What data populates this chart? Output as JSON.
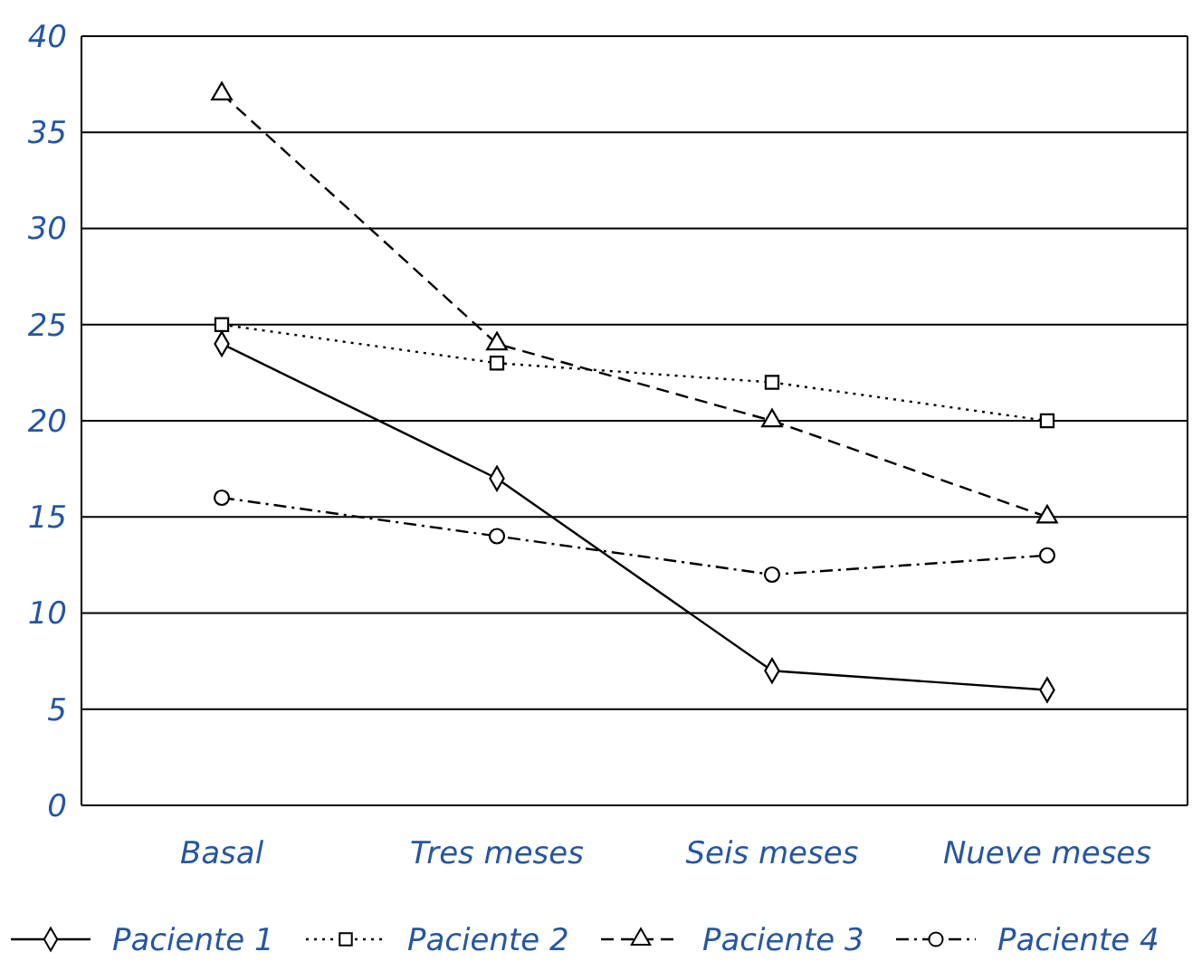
{
  "chart_data": {
    "type": "line",
    "categories": [
      "Basal",
      "Tres meses",
      "Seis meses",
      "Nueve meses"
    ],
    "series": [
      {
        "name": "Paciente 1",
        "color": "#000000",
        "marker": "diamond",
        "line_style": "solid",
        "values": [
          24,
          17,
          7,
          6
        ]
      },
      {
        "name": "Paciente 2",
        "color": "#000000",
        "marker": "square",
        "line_style": "dotted",
        "values": [
          25,
          23,
          22,
          20
        ]
      },
      {
        "name": "Paciente 3",
        "color": "#000000",
        "marker": "triangle",
        "line_style": "dashed",
        "values": [
          37,
          24,
          20,
          15
        ]
      },
      {
        "name": "Paciente 4",
        "color": "#000000",
        "marker": "circle",
        "line_style": "dashdot",
        "values": [
          16,
          14,
          12,
          13
        ]
      }
    ],
    "ylim": [
      0,
      40
    ],
    "yticks": [
      0,
      5,
      10,
      15,
      20,
      25,
      30,
      35,
      40
    ],
    "grid": "y",
    "legend": "bottom"
  }
}
